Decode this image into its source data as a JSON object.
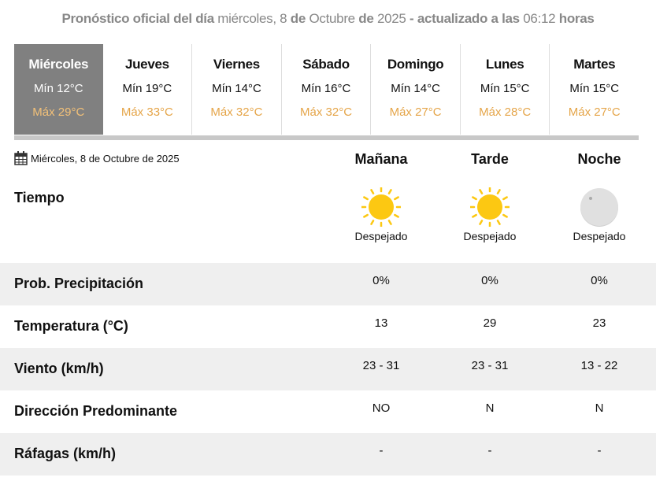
{
  "header": {
    "p1": "Pronóstico oficial del día",
    "day": "miércoles, 8",
    "p2": "de",
    "month": "Octubre",
    "p3": "de",
    "year": "2025",
    "p4": "- actualizado a las",
    "time": "06:12",
    "p5": "horas"
  },
  "days": [
    {
      "name": "Miércoles",
      "min": "Mín 12°C",
      "max": "Máx 29°C",
      "active": true
    },
    {
      "name": "Jueves",
      "min": "Mín 19°C",
      "max": "Máx 33°C"
    },
    {
      "name": "Viernes",
      "min": "Mín 14°C",
      "max": "Máx 32°C"
    },
    {
      "name": "Sábado",
      "min": "Mín 16°C",
      "max": "Máx 32°C"
    },
    {
      "name": "Domingo",
      "min": "Mín 14°C",
      "max": "Máx 27°C"
    },
    {
      "name": "Lunes",
      "min": "Mín 15°C",
      "max": "Máx 28°C"
    },
    {
      "name": "Martes",
      "min": "Mín 15°C",
      "max": "Máx 27°C"
    }
  ],
  "detail": {
    "date": "Miércoles, 8 de Octubre de 2025",
    "periods": [
      "Mañana",
      "Tarde",
      "Noche"
    ],
    "weather_label": "Tiempo",
    "weather": [
      {
        "icon": "sun-icon",
        "text": "Despejado"
      },
      {
        "icon": "sun-icon",
        "text": "Despejado"
      },
      {
        "icon": "moon-icon",
        "text": "Despejado"
      }
    ],
    "rows": [
      {
        "label": "Prob. Precipitación",
        "values": [
          "0%",
          "0%",
          "0%"
        ]
      },
      {
        "label": "Temperatura (°C)",
        "values": [
          "13",
          "29",
          "23"
        ]
      },
      {
        "label": "Viento (km/h)",
        "values": [
          "23 - 31",
          "23 - 31",
          "13 - 22"
        ]
      },
      {
        "label": "Dirección Predominante",
        "values": [
          "NO",
          "N",
          "N"
        ]
      },
      {
        "label": "Ráfagas (km/h)",
        "values": [
          "-",
          "-",
          "-"
        ]
      }
    ]
  },
  "colors": {
    "active_tab": "#808080",
    "max_temp": "#e5a549",
    "sun": "#fcc812",
    "moon": "#e0e0e0"
  }
}
